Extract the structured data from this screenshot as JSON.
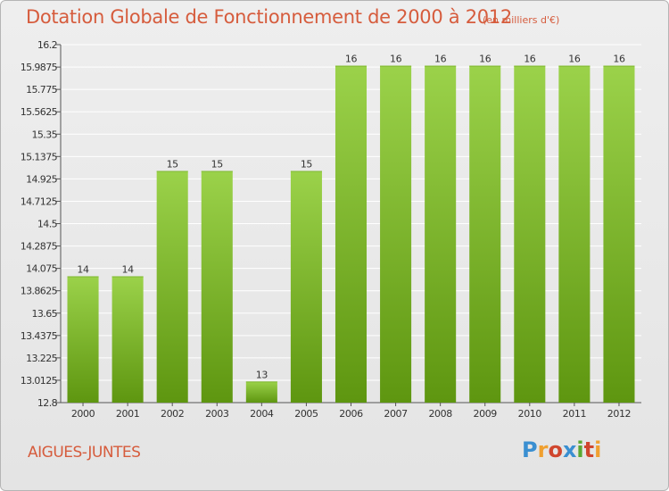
{
  "title": "Dotation Globale de Fonctionnement de 2000 à 2012",
  "unit": "(en milliers d'€)",
  "commune": "AIGUES-JUNTES",
  "logo": {
    "text": "Proxiti",
    "colors": [
      "#3a8fd1",
      "#f0a030",
      "#d0462e",
      "#3a8fd1",
      "#5aa832",
      "#d0462e",
      "#f0a030"
    ]
  },
  "colors": {
    "accent": "#d65c3d",
    "bar_light": "#9bd24a",
    "bar_dark": "#5e9610",
    "grid": "#ffffff"
  },
  "chart_data": {
    "type": "bar",
    "title": "Dotation Globale de Fonctionnement de 2000 à 2012",
    "xlabel": "",
    "ylabel": "",
    "categories": [
      "2000",
      "2001",
      "2002",
      "2003",
      "2004",
      "2005",
      "2006",
      "2007",
      "2008",
      "2009",
      "2010",
      "2011",
      "2012"
    ],
    "values": [
      14,
      14,
      15,
      15,
      13,
      15,
      16,
      16,
      16,
      16,
      16,
      16,
      16
    ],
    "data_labels": [
      "14",
      "14",
      "15",
      "15",
      "13",
      "15",
      "16",
      "16",
      "16",
      "16",
      "16",
      "16",
      "16"
    ],
    "ylim": [
      12.8,
      16.2
    ],
    "yticks": [
      "12.8",
      "13.0125",
      "13.225",
      "13.4375",
      "13.65",
      "13.8625",
      "14.075",
      "14.2875",
      "14.5",
      "14.7125",
      "14.925",
      "15.1375",
      "15.35",
      "15.5625",
      "15.775",
      "15.9875",
      "16.2"
    ],
    "grid": true,
    "legend": "none"
  }
}
